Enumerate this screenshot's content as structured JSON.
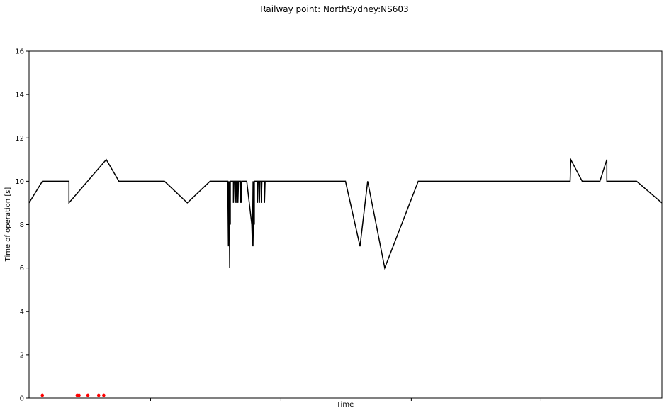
{
  "chart_data": {
    "type": "line",
    "title": "Railway point: NorthSydney:NS603",
    "xlabel": "Time",
    "ylabel": "Time of operation [s]",
    "ylim": [
      0,
      16
    ],
    "yticks": [
      0,
      2,
      4,
      6,
      8,
      10,
      12,
      14,
      16
    ],
    "x_tick_labels_shown": false,
    "grid": false,
    "series": [
      {
        "color": "#000000",
        "style": "line",
        "points": [
          [
            0.0,
            9
          ],
          [
            0.021,
            10
          ],
          [
            0.063,
            10
          ],
          [
            0.063,
            9
          ],
          [
            0.122,
            11
          ],
          [
            0.142,
            10
          ],
          [
            0.214,
            10
          ],
          [
            0.25,
            9
          ],
          [
            0.286,
            10
          ],
          [
            0.314,
            10
          ],
          [
            0.315,
            7
          ],
          [
            0.315,
            10
          ],
          [
            0.316,
            9
          ],
          [
            0.316,
            10
          ],
          [
            0.317,
            6
          ],
          [
            0.317,
            10
          ],
          [
            0.318,
            8
          ],
          [
            0.318,
            10
          ],
          [
            0.319,
            10
          ],
          [
            0.323,
            10
          ],
          [
            0.323,
            9
          ],
          [
            0.324,
            10
          ],
          [
            0.326,
            10
          ],
          [
            0.326,
            9
          ],
          [
            0.327,
            10
          ],
          [
            0.328,
            10
          ],
          [
            0.328,
            9
          ],
          [
            0.329,
            10
          ],
          [
            0.33,
            10
          ],
          [
            0.33,
            9
          ],
          [
            0.331,
            10
          ],
          [
            0.334,
            10
          ],
          [
            0.334,
            9
          ],
          [
            0.335,
            10
          ],
          [
            0.335,
            9
          ],
          [
            0.336,
            10
          ],
          [
            0.344,
            10
          ],
          [
            0.352,
            8
          ],
          [
            0.353,
            7
          ],
          [
            0.354,
            10
          ],
          [
            0.355,
            7
          ],
          [
            0.355,
            10
          ],
          [
            0.356,
            8
          ],
          [
            0.356,
            10
          ],
          [
            0.361,
            10
          ],
          [
            0.361,
            9
          ],
          [
            0.362,
            10
          ],
          [
            0.364,
            10
          ],
          [
            0.364,
            9
          ],
          [
            0.365,
            10
          ],
          [
            0.367,
            10
          ],
          [
            0.367,
            9
          ],
          [
            0.368,
            10
          ],
          [
            0.372,
            10
          ],
          [
            0.372,
            9
          ],
          [
            0.373,
            10
          ],
          [
            0.5,
            10
          ],
          [
            0.523,
            7
          ],
          [
            0.535,
            10
          ],
          [
            0.562,
            6
          ],
          [
            0.615,
            10
          ],
          [
            0.753,
            10
          ],
          [
            0.855,
            10
          ],
          [
            0.856,
            11
          ],
          [
            0.874,
            10
          ],
          [
            0.902,
            10
          ],
          [
            0.913,
            11
          ],
          [
            0.913,
            10
          ],
          [
            0.96,
            10
          ],
          [
            1.0,
            9
          ]
        ]
      },
      {
        "color": "#ff0000",
        "style": "markers",
        "points": [
          [
            0.021,
            0.1
          ],
          [
            0.076,
            0.1
          ],
          [
            0.079,
            0.1
          ],
          [
            0.093,
            0.1
          ],
          [
            0.11,
            0.1
          ],
          [
            0.118,
            0.1
          ]
        ]
      }
    ]
  }
}
